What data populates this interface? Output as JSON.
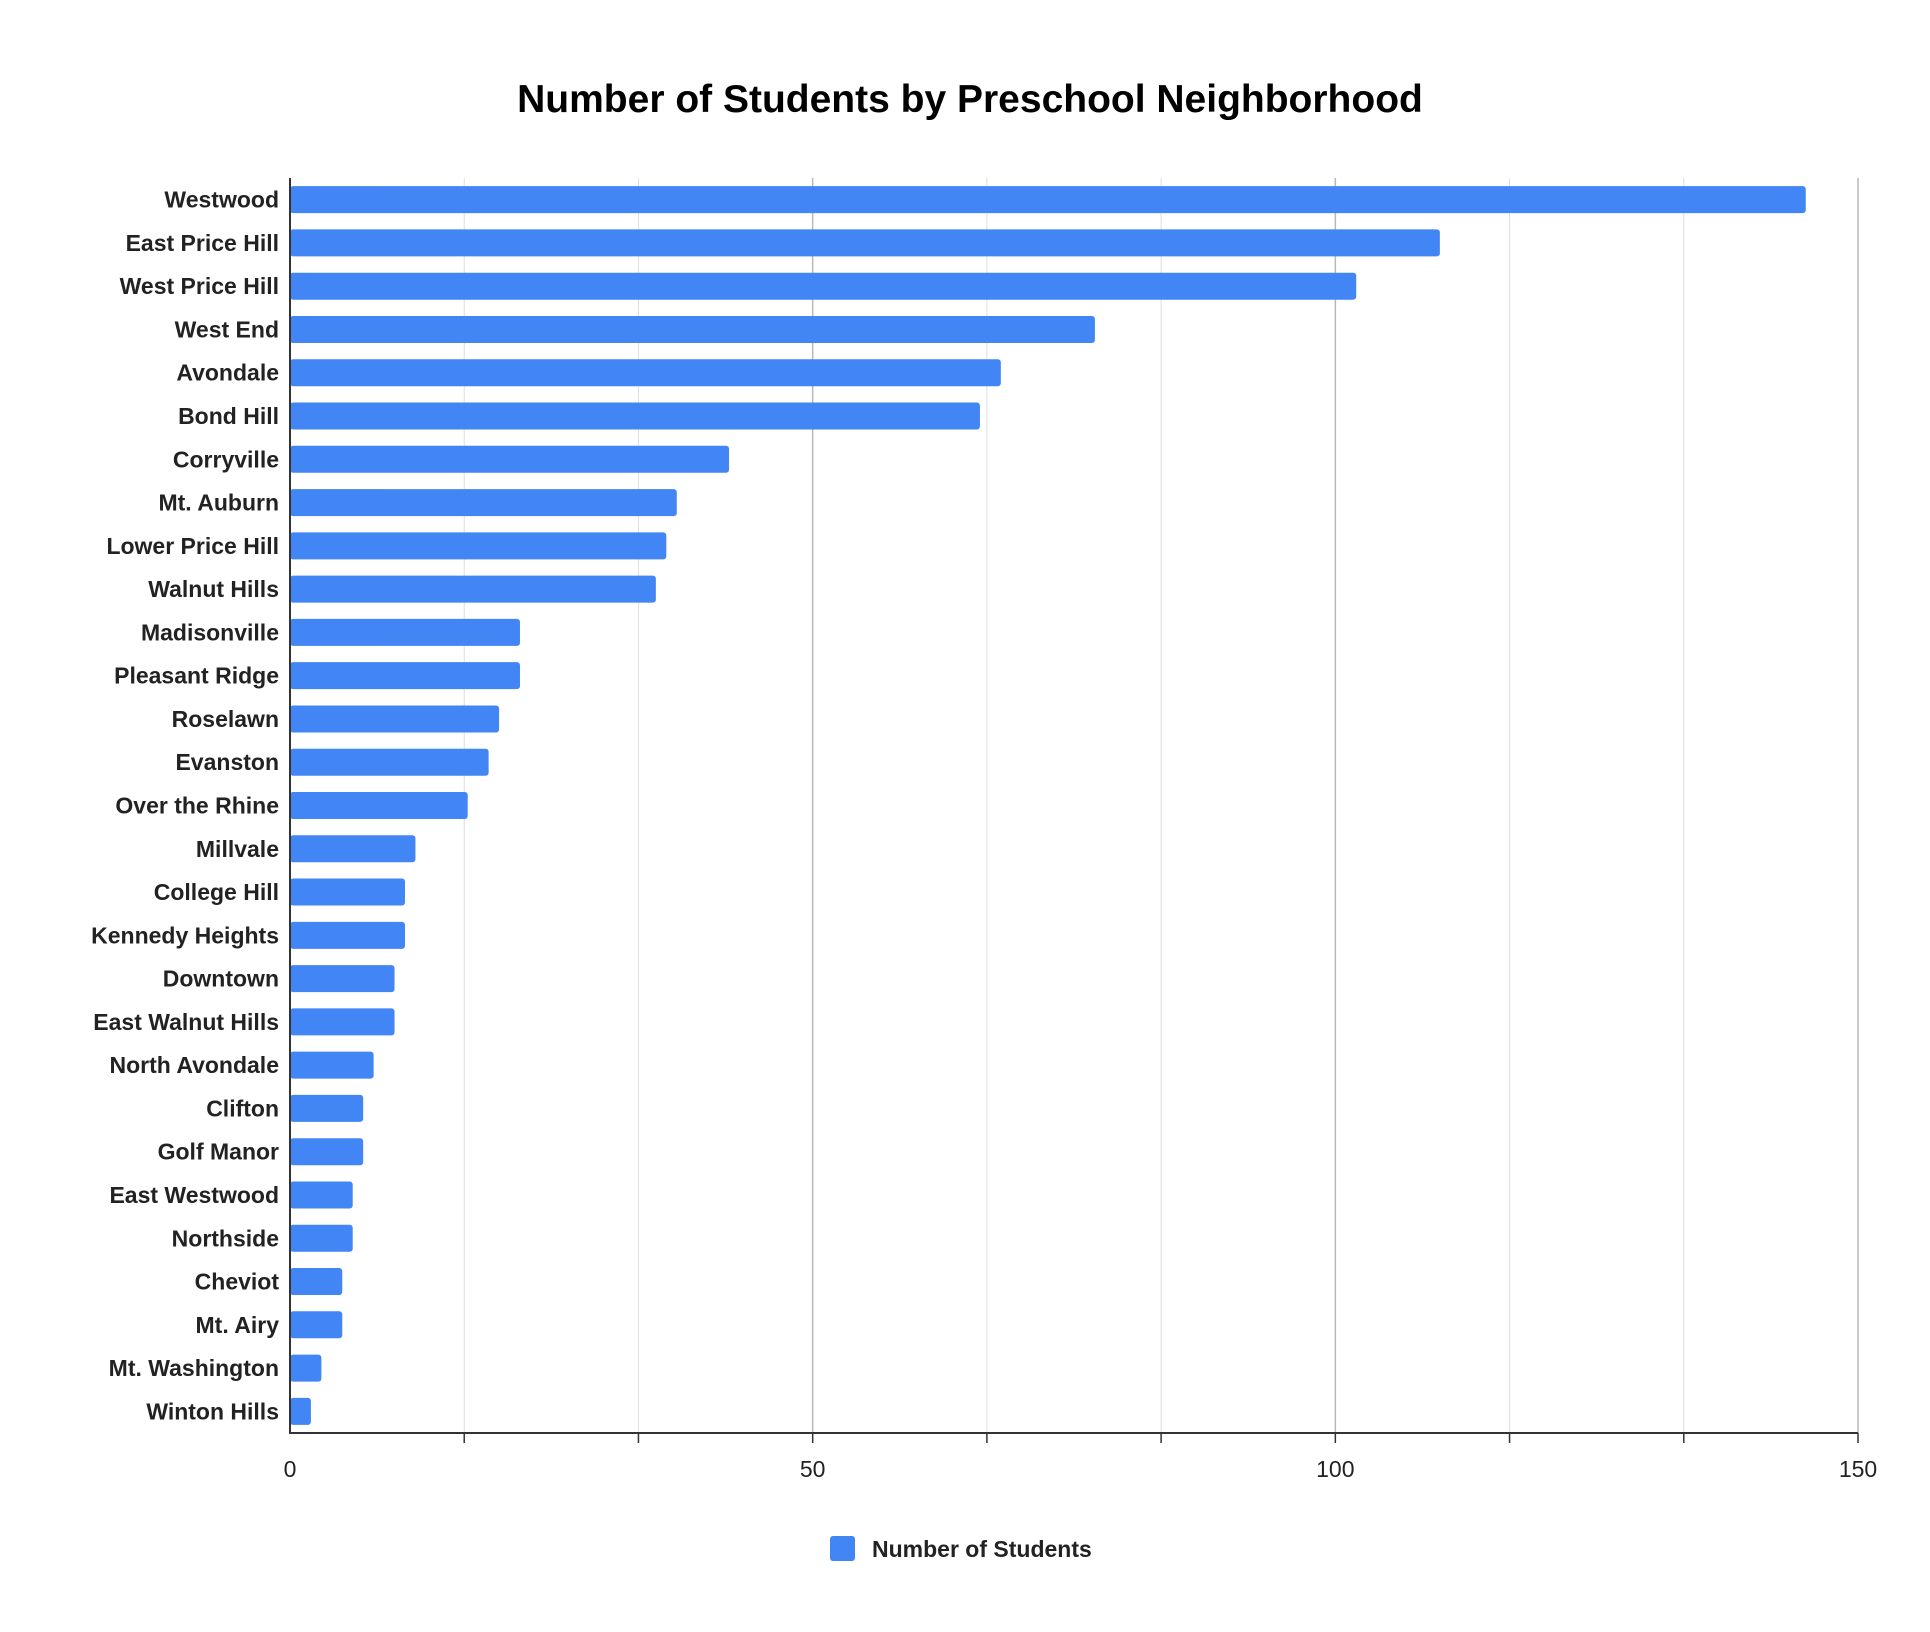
{
  "chart_data": {
    "type": "bar",
    "orientation": "horizontal",
    "title": "Number of Students by Preschool Neighborhood",
    "xlabel": "",
    "ylabel": "",
    "xlim": [
      0,
      150
    ],
    "x_ticks": [
      0,
      50,
      100,
      150
    ],
    "grid": true,
    "legend_position": "bottom",
    "color": "#4285F4",
    "categories": [
      "Westwood",
      "East Price Hill",
      "West Price Hill",
      "West End",
      "Avondale",
      "Bond Hill",
      "Corryville",
      "Mt. Auburn",
      "Lower Price Hill",
      "Walnut Hills",
      "Madisonville",
      "Pleasant Ridge",
      "Roselawn",
      "Evanston",
      "Over the Rhine",
      "Millvale",
      "College Hill",
      "Kennedy Heights",
      "Downtown",
      "East Walnut Hills",
      "North Avondale",
      "Clifton",
      "Golf Manor",
      "East Westwood",
      "Northside",
      "Cheviot",
      "Mt. Airy",
      "Mt. Washington",
      "Winton Hills"
    ],
    "series": [
      {
        "name": "Number of Students",
        "values": [
          145,
          110,
          102,
          77,
          68,
          66,
          42,
          37,
          36,
          35,
          22,
          22,
          20,
          19,
          17,
          12,
          11,
          11,
          10,
          10,
          8,
          7,
          7,
          6,
          6,
          5,
          5,
          3,
          2
        ]
      }
    ]
  }
}
